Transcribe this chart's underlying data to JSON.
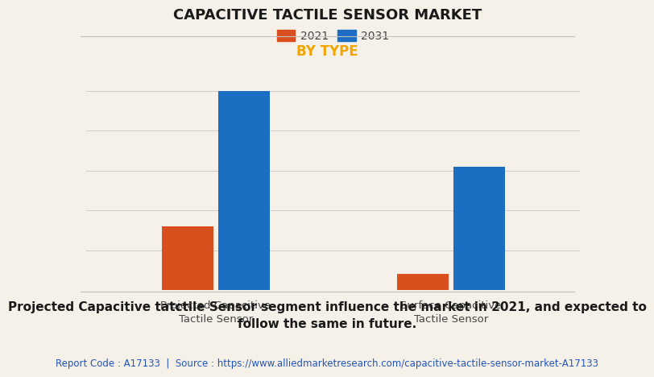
{
  "title": "CAPACITIVE TACTILE SENSOR MARKET",
  "subtitle": "BY TYPE",
  "categories": [
    "Projected Capacitive\nTactile Sensor",
    "Surface Capacitive\nTactile Sensor"
  ],
  "series": [
    {
      "label": "2021",
      "values": [
        32,
        8
      ],
      "color": "#d94f1e"
    },
    {
      "label": "2031",
      "values": [
        100,
        62
      ],
      "color": "#1b6ec2"
    }
  ],
  "background_color": "#f5f0e8",
  "plot_bg_color": "#f5f0e8",
  "title_fontsize": 13,
  "subtitle_fontsize": 12,
  "subtitle_color": "#f0a500",
  "grid_color": "#cccccc",
  "footer_text": "Projected Capacitive tatctile Sensor segment influence the market in 2021, and expected to\nfollow the same in future.",
  "source_text": "Report Code : A17133  |  Source : https://www.alliedmarketresearch.com/capacitive-tactile-sensor-market-A17133",
  "bar_width": 0.22,
  "ylim": [
    0,
    115
  ],
  "legend_fontsize": 10,
  "tick_label_fontsize": 9.5,
  "footer_fontsize": 11,
  "source_fontsize": 8.5
}
